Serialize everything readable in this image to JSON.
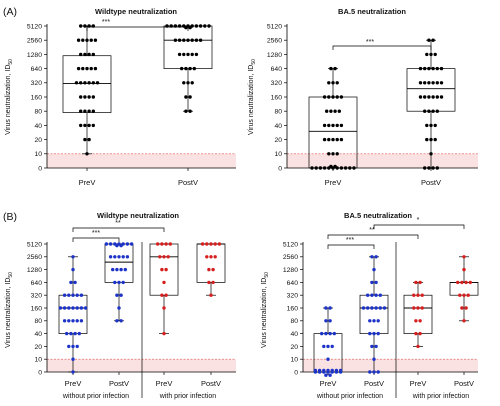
{
  "panel_labels": {
    "a": "(A)",
    "b": "(B)"
  },
  "ytick_labels": [
    "0",
    "10",
    "20",
    "40",
    "80",
    "160",
    "320",
    "640",
    "1280",
    "2560",
    "5120"
  ],
  "ylabel_main": "Virus neutralization, ID",
  "ylabel_sub": "50",
  "colors": {
    "black": "#000000",
    "blue": "#1d33c8",
    "red": "#d61f1f",
    "lod_fill": "#fbe2e2",
    "lod_line": "#e05555"
  },
  "chart_data": [
    {
      "id": "A1",
      "type": "box",
      "title": "Wildtype neutralization",
      "categories": [
        "PreV",
        "PostV"
      ],
      "ylabel": "Virus neutralization, ID50",
      "yscale": "log2",
      "yticks": [
        0,
        10,
        20,
        40,
        80,
        160,
        320,
        640,
        1280,
        2560,
        5120
      ],
      "lod": 10,
      "boxes": [
        {
          "category": "PreV",
          "min": 10,
          "q1": 75,
          "median": 310,
          "q3": 1200,
          "max": 5120
        },
        {
          "category": "PostV",
          "min": 80,
          "q1": 640,
          "median": 2560,
          "q3": 5120,
          "max": 5120
        }
      ],
      "significance": [
        {
          "from": "PreV",
          "to": "PostV",
          "label": "***"
        }
      ]
    },
    {
      "id": "A2",
      "type": "box",
      "title": "BA.5 neutralization",
      "categories": [
        "PreV",
        "PostV"
      ],
      "ylabel": "Virus neutralization, ID50",
      "yscale": "log2",
      "lod": 10,
      "boxes": [
        {
          "category": "PreV",
          "min": 0,
          "q1": 0,
          "median": 30,
          "q3": 160,
          "max": 640
        },
        {
          "category": "PostV",
          "min": 0,
          "q1": 80,
          "median": 240,
          "q3": 640,
          "max": 2560
        }
      ],
      "significance": [
        {
          "from": "PreV",
          "to": "PostV",
          "label": "***"
        }
      ]
    },
    {
      "id": "B1",
      "type": "box",
      "title": "Wildtype neutralization",
      "categories": [
        "PreV",
        "PostV",
        "PreV",
        "PostV"
      ],
      "groups": [
        "without prior infection",
        "with prior infection"
      ],
      "ylabel": "Virus neutralization, ID50",
      "yscale": "log2",
      "lod": 10,
      "boxes": [
        {
          "category": "PreV",
          "group": "without prior infection",
          "color": "blue",
          "min": 0,
          "q1": 40,
          "median": 160,
          "q3": 320,
          "max": 2560
        },
        {
          "category": "PostV",
          "group": "without prior infection",
          "color": "blue",
          "min": 80,
          "q1": 640,
          "median": 1920,
          "q3": 5120,
          "max": 5120
        },
        {
          "category": "PreV",
          "group": "with prior infection",
          "color": "red",
          "min": 40,
          "q1": 320,
          "median": 2560,
          "q3": 5120,
          "max": 5120
        },
        {
          "category": "PostV",
          "group": "with prior infection",
          "color": "red",
          "min": 320,
          "q1": 640,
          "median": 5120,
          "q3": 5120,
          "max": 5120
        }
      ],
      "significance": [
        {
          "from": 0,
          "to": 1,
          "label": "***"
        },
        {
          "from": 0,
          "to": 2,
          "label": "**"
        }
      ]
    },
    {
      "id": "B2",
      "type": "box",
      "title": "BA.5 neutralization",
      "categories": [
        "PreV",
        "PostV",
        "PreV",
        "PostV"
      ],
      "groups": [
        "without prior infection",
        "with prior infection"
      ],
      "ylabel": "Virus neutralization, ID50",
      "yscale": "log2",
      "lod": 10,
      "boxes": [
        {
          "category": "PreV",
          "group": "without prior infection",
          "color": "blue",
          "min": 0,
          "q1": 0,
          "median": 0,
          "q3": 40,
          "max": 160
        },
        {
          "category": "PostV",
          "group": "without prior infection",
          "color": "blue",
          "min": 0,
          "q1": 40,
          "median": 160,
          "q3": 320,
          "max": 2560
        },
        {
          "category": "PreV",
          "group": "with prior infection",
          "color": "red",
          "min": 20,
          "q1": 40,
          "median": 160,
          "q3": 320,
          "max": 640
        },
        {
          "category": "PostV",
          "group": "with prior infection",
          "color": "red",
          "min": 80,
          "q1": 320,
          "median": 640,
          "q3": 640,
          "max": 2560
        }
      ],
      "significance": [
        {
          "from": 0,
          "to": 1,
          "label": "***"
        },
        {
          "from": 0,
          "to": 2,
          "label": "**"
        },
        {
          "from": 1,
          "to": 3,
          "label": "*"
        }
      ]
    }
  ],
  "points": {
    "A1": [
      [
        5120,
        5120,
        5120,
        5120,
        2560,
        2560,
        2560,
        2560,
        2560,
        1280,
        1280,
        1280,
        1280,
        640,
        640,
        640,
        640,
        640,
        320,
        320,
        320,
        320,
        320,
        320,
        160,
        160,
        160,
        160,
        80,
        80,
        80,
        80,
        40,
        40,
        40,
        40,
        20,
        20,
        10
      ],
      [
        5120,
        5120,
        5120,
        5120,
        5120,
        5120,
        5120,
        5120,
        5120,
        5120,
        5120,
        5120,
        5120,
        2560,
        2560,
        2560,
        2560,
        2560,
        2560,
        2560,
        1280,
        1280,
        1280,
        1280,
        1280,
        640,
        640,
        640,
        640,
        320,
        320,
        320,
        160,
        160,
        80,
        80
      ]
    ],
    "A2": [
      [
        640,
        640,
        320,
        320,
        320,
        160,
        160,
        160,
        160,
        160,
        80,
        80,
        80,
        80,
        40,
        40,
        40,
        40,
        40,
        20,
        20,
        20,
        20,
        20,
        10,
        10,
        10,
        0,
        0,
        0,
        0,
        0,
        0,
        0,
        0,
        0,
        0,
        0,
        0,
        0
      ],
      [
        2560,
        2560,
        1280,
        1280,
        1280,
        640,
        640,
        640,
        640,
        640,
        640,
        320,
        320,
        320,
        320,
        320,
        320,
        160,
        160,
        160,
        160,
        160,
        160,
        80,
        80,
        80,
        80,
        40,
        40,
        40,
        20,
        20,
        20,
        10,
        0,
        0,
        0,
        0
      ]
    ],
    "B1": [
      [
        2560,
        1280,
        640,
        640,
        320,
        320,
        320,
        320,
        320,
        160,
        160,
        160,
        160,
        160,
        160,
        160,
        80,
        80,
        80,
        80,
        80,
        40,
        40,
        40,
        40,
        20,
        20,
        20,
        10,
        0
      ],
      [
        5120,
        5120,
        5120,
        5120,
        5120,
        5120,
        5120,
        5120,
        5120,
        2560,
        2560,
        2560,
        2560,
        2560,
        1280,
        1280,
        1280,
        1280,
        640,
        640,
        640,
        320,
        320,
        160,
        80,
        80
      ],
      [
        5120,
        5120,
        5120,
        5120,
        2560,
        2560,
        2560,
        1280,
        1280,
        640,
        320,
        320,
        160,
        40
      ],
      [
        5120,
        5120,
        5120,
        5120,
        5120,
        2560,
        2560,
        2560,
        1280,
        1280,
        640,
        640,
        320
      ]
    ],
    "B2": [
      [
        160,
        160,
        80,
        80,
        40,
        40,
        40,
        40,
        20,
        20,
        20,
        10,
        0,
        0,
        0,
        0,
        0,
        0,
        0,
        0,
        0,
        0,
        0,
        0,
        0,
        0,
        0,
        0
      ],
      [
        2560,
        2560,
        1280,
        640,
        640,
        320,
        320,
        320,
        320,
        160,
        160,
        160,
        160,
        160,
        160,
        80,
        80,
        80,
        40,
        40,
        40,
        20,
        20,
        10,
        0,
        0,
        0
      ],
      [
        640,
        640,
        320,
        320,
        320,
        160,
        160,
        160,
        80,
        80,
        40,
        40,
        20
      ],
      [
        2560,
        1280,
        640,
        640,
        640,
        640,
        320,
        320,
        320,
        160,
        160,
        80
      ]
    ]
  },
  "group_labels": [
    "without prior infection",
    "with prior infection"
  ]
}
